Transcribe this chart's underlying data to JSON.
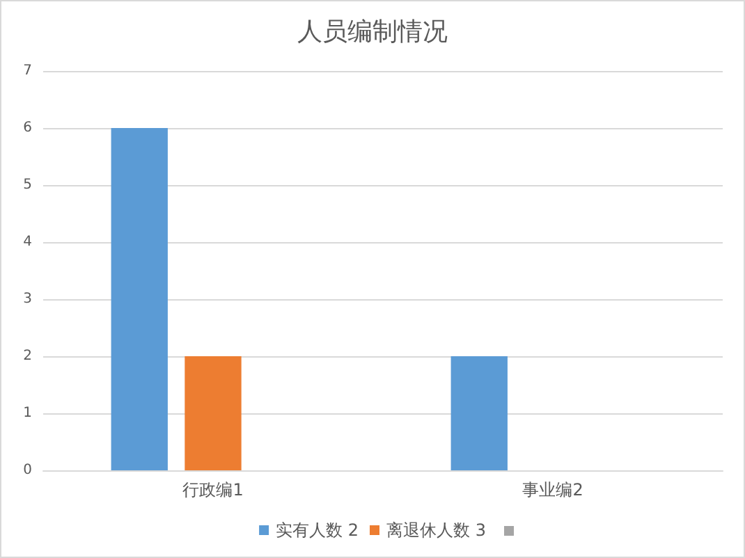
{
  "chart_data": {
    "type": "bar",
    "title": "人员编制情况",
    "categories": [
      "行政编1",
      "事业编2"
    ],
    "series": [
      {
        "name": "实有人数 2",
        "color": "#5b9bd5",
        "values": [
          6,
          2
        ]
      },
      {
        "name": "离退休人数 3",
        "color": "#ed7d31",
        "values": [
          2,
          null
        ]
      },
      {
        "color": "#a5a5a5",
        "values": [
          null,
          null
        ]
      }
    ],
    "ylim": [
      0,
      7
    ],
    "yticks": [
      0,
      1,
      2,
      3,
      4,
      5,
      6,
      7
    ],
    "grid": "y",
    "legend": "bottom"
  }
}
